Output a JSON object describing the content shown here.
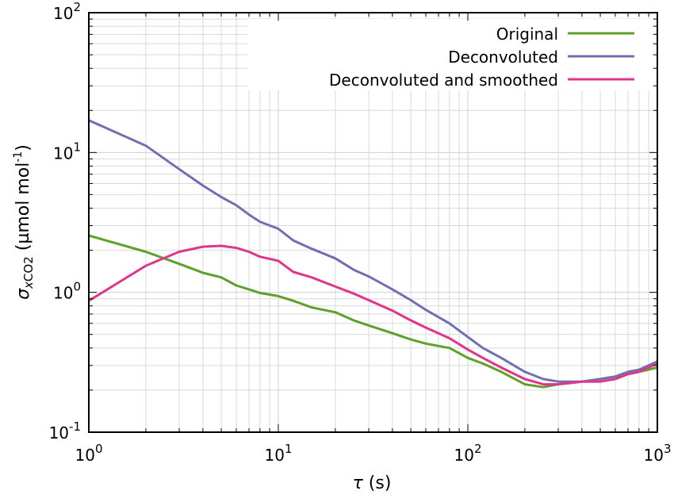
{
  "chart_data": {
    "type": "line",
    "x_scale": "log",
    "y_scale": "log",
    "xlim": [
      1,
      1000
    ],
    "ylim": [
      0.1,
      100
    ],
    "grid": true,
    "legend_position": "top-right",
    "x_ticks": [
      {
        "value": 1,
        "base": "10",
        "exp": "0"
      },
      {
        "value": 10,
        "base": "10",
        "exp": "1"
      },
      {
        "value": 100,
        "base": "10",
        "exp": "2"
      },
      {
        "value": 1000,
        "base": "10",
        "exp": "3"
      }
    ],
    "y_ticks": [
      {
        "value": 0.1,
        "base": "10",
        "exp": "-1"
      },
      {
        "value": 1,
        "base": "10",
        "exp": "0"
      },
      {
        "value": 10,
        "base": "10",
        "exp": "1"
      },
      {
        "value": 100,
        "base": "10",
        "exp": "2"
      }
    ],
    "xlabel": {
      "symbol": "τ",
      "unit": " (s)"
    },
    "ylabel": {
      "symbol": "σ",
      "sub_italic": "x",
      "sub": "CO2",
      "unit": " (µmol mol",
      "exp": "-1",
      "close": ")"
    },
    "series": [
      {
        "name": "Original",
        "color": "#5ea12a",
        "x": [
          1,
          2,
          3,
          4,
          5,
          6,
          7,
          8,
          10,
          12,
          15,
          20,
          25,
          30,
          40,
          50,
          60,
          80,
          100,
          120,
          150,
          200,
          250,
          300,
          400,
          500,
          600,
          700,
          800,
          1000
        ],
        "y": [
          2.55,
          1.95,
          1.6,
          1.38,
          1.28,
          1.12,
          1.05,
          0.99,
          0.94,
          0.87,
          0.78,
          0.72,
          0.63,
          0.58,
          0.51,
          0.46,
          0.43,
          0.4,
          0.34,
          0.31,
          0.27,
          0.22,
          0.21,
          0.22,
          0.23,
          0.24,
          0.25,
          0.26,
          0.27,
          0.29
        ]
      },
      {
        "name": "Deconvoluted",
        "color": "#7070b0",
        "x": [
          1,
          2,
          3,
          4,
          5,
          6,
          7,
          8,
          10,
          12,
          15,
          20,
          25,
          30,
          40,
          50,
          60,
          80,
          100,
          120,
          150,
          200,
          250,
          300,
          400,
          500,
          600,
          700,
          800,
          1000
        ],
        "y": [
          17,
          11.2,
          7.6,
          5.8,
          4.8,
          4.2,
          3.6,
          3.2,
          2.85,
          2.35,
          2.05,
          1.75,
          1.45,
          1.3,
          1.05,
          0.88,
          0.75,
          0.6,
          0.48,
          0.4,
          0.34,
          0.27,
          0.24,
          0.23,
          0.23,
          0.24,
          0.25,
          0.27,
          0.28,
          0.32
        ]
      },
      {
        "name": "Deconvoluted and smoothed",
        "color": "#e0358a",
        "x": [
          1,
          2,
          3,
          4,
          5,
          6,
          7,
          8,
          10,
          12,
          15,
          20,
          25,
          30,
          40,
          50,
          60,
          80,
          100,
          120,
          150,
          200,
          250,
          300,
          400,
          500,
          600,
          700,
          800,
          1000
        ],
        "y": [
          0.87,
          1.55,
          1.95,
          2.12,
          2.15,
          2.08,
          1.95,
          1.8,
          1.68,
          1.4,
          1.28,
          1.1,
          0.98,
          0.88,
          0.74,
          0.63,
          0.56,
          0.47,
          0.39,
          0.34,
          0.29,
          0.24,
          0.22,
          0.22,
          0.23,
          0.23,
          0.24,
          0.26,
          0.27,
          0.31
        ]
      }
    ]
  }
}
